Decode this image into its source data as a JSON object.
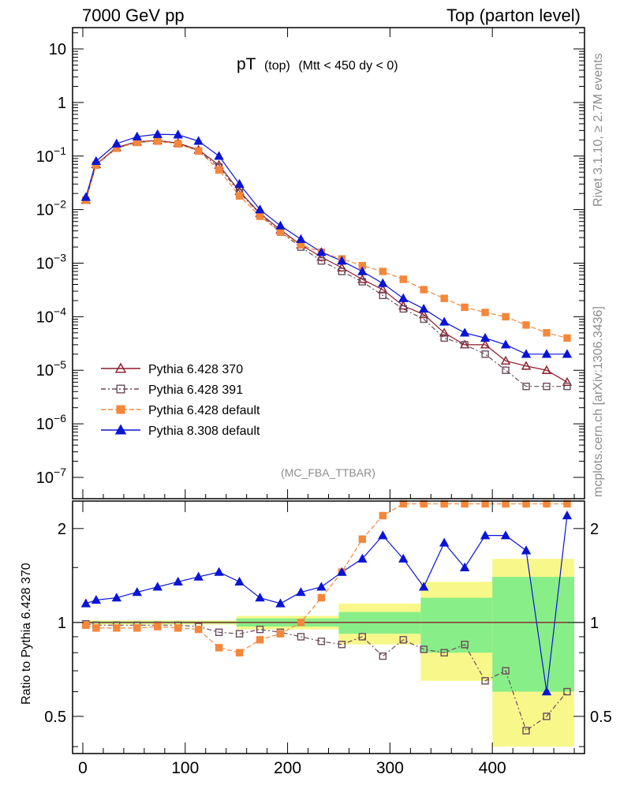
{
  "header": {
    "left_text": "7000 GeV pp",
    "right_text": "Top (parton level)"
  },
  "plot_title": {
    "main": "pT",
    "sub": "(top)",
    "cut": "(Mtt < 450 dy < 0)"
  },
  "analysis_tag": "(MC_FBA_TTBAR)",
  "side_text": {
    "rivet": "Rivet 3.1.10, ≥ 2.7M events",
    "site": "mcplots.cern.ch [arXiv:1306.3436]"
  },
  "ratio_ylabel": "Ratio to Pythia 6.428 370",
  "colors": {
    "p370": "#8b1a2a",
    "p391": "#6b4a5a",
    "p6def": "#f5873a",
    "p8def": "#0a14d6",
    "band_inner": "#88ee88",
    "band_outer": "#f8f88a"
  },
  "chart_data": [
    {
      "type": "line",
      "title": "pT (top) (Mtt < 450 dy < 0)",
      "y_scale": "log",
      "xlim": [
        -10,
        490
      ],
      "ylim": [
        4e-08,
        25
      ],
      "x_ticks": [
        0,
        100,
        200,
        300,
        400
      ],
      "y_ticks": [
        "10^{-7}",
        "10^{-6}",
        "10^{-5}",
        "10^{-4}",
        "10^{-3}",
        "10^{-2}",
        "10^{-1}",
        "1",
        "10"
      ],
      "legend_position": "bottom-left",
      "series": [
        {
          "name": "Pythia 6.428 370",
          "marker": "open-triangle",
          "x": [
            3,
            13,
            33,
            53,
            73,
            93,
            113,
            133,
            153,
            173,
            193,
            213,
            233,
            253,
            273,
            293,
            313,
            333,
            353,
            373,
            393,
            413,
            433,
            453,
            473
          ],
          "y": [
            0.015,
            0.07,
            0.145,
            0.185,
            0.195,
            0.175,
            0.13,
            0.068,
            0.022,
            0.0085,
            0.0042,
            0.0022,
            0.0013,
            0.00082,
            0.0005,
            0.00032,
            0.00016,
            0.00011,
            5e-05,
            3e-05,
            3e-05,
            1.5e-05,
            1.2e-05,
            1e-05,
            6e-06
          ]
        },
        {
          "name": "Pythia 6.428 391",
          "marker": "open-square",
          "x": [
            3,
            13,
            33,
            53,
            73,
            93,
            113,
            133,
            153,
            173,
            193,
            213,
            233,
            253,
            273,
            293,
            313,
            333,
            353,
            373,
            393,
            413,
            433,
            453,
            473
          ],
          "y": [
            0.015,
            0.068,
            0.14,
            0.18,
            0.19,
            0.17,
            0.125,
            0.062,
            0.021,
            0.0082,
            0.0038,
            0.002,
            0.0011,
            0.0007,
            0.00045,
            0.00025,
            0.00014,
            9e-05,
            4e-05,
            3e-05,
            2e-05,
            1e-05,
            5e-06,
            5e-06,
            5e-06
          ]
        },
        {
          "name": "Pythia 6.428 default",
          "marker": "filled-square",
          "x": [
            3,
            13,
            33,
            53,
            73,
            93,
            113,
            133,
            153,
            173,
            193,
            213,
            233,
            253,
            273,
            293,
            313,
            333,
            353,
            373,
            393,
            413,
            433,
            453,
            473
          ],
          "y": [
            0.015,
            0.068,
            0.14,
            0.18,
            0.19,
            0.17,
            0.125,
            0.055,
            0.018,
            0.0075,
            0.0038,
            0.0022,
            0.0016,
            0.0012,
            0.0009,
            0.0007,
            0.0005,
            0.00032,
            0.00022,
            0.00015,
            0.00012,
            0.0001,
            7e-05,
            5e-05,
            4e-05
          ]
        },
        {
          "name": "Pythia 8.308 default",
          "marker": "filled-triangle",
          "x": [
            3,
            13,
            33,
            53,
            73,
            93,
            113,
            133,
            153,
            173,
            193,
            213,
            233,
            253,
            273,
            293,
            313,
            333,
            353,
            373,
            393,
            413,
            433,
            453,
            473
          ],
          "y": [
            0.017,
            0.08,
            0.17,
            0.23,
            0.255,
            0.25,
            0.19,
            0.1,
            0.03,
            0.01,
            0.005,
            0.0028,
            0.0016,
            0.0011,
            0.0007,
            0.00042,
            0.00022,
            0.00014,
            8e-05,
            5e-05,
            4e-05,
            3e-05,
            2e-05,
            2e-05,
            2e-05
          ]
        }
      ]
    },
    {
      "type": "line",
      "ylabel": "Ratio to Pythia 6.428 370",
      "y_scale": "log",
      "xlim": [
        -10,
        490
      ],
      "ylim": [
        0.38,
        2.45
      ],
      "x_ticks": [
        0,
        100,
        200,
        300,
        400
      ],
      "y_ticks": [
        0.5,
        1,
        2
      ],
      "series": [
        {
          "name": "Pythia 6.428 391",
          "x": [
            3,
            13,
            33,
            53,
            73,
            93,
            113,
            133,
            153,
            173,
            193,
            213,
            233,
            253,
            273,
            293,
            313,
            333,
            353,
            373,
            393,
            413,
            433,
            453,
            473
          ],
          "y": [
            0.99,
            0.98,
            0.98,
            0.98,
            0.98,
            0.98,
            0.97,
            0.93,
            0.92,
            0.95,
            0.93,
            0.9,
            0.87,
            0.85,
            0.9,
            0.78,
            0.88,
            0.82,
            0.8,
            0.85,
            0.65,
            0.7,
            0.45,
            0.5,
            0.6
          ]
        },
        {
          "name": "Pythia 6.428 default",
          "x": [
            3,
            13,
            33,
            53,
            73,
            93,
            113,
            133,
            153,
            173,
            193,
            213,
            233,
            253,
            273,
            293,
            313,
            333,
            353,
            373,
            393,
            413,
            433,
            453,
            473
          ],
          "y": [
            0.98,
            0.96,
            0.96,
            0.96,
            0.97,
            0.96,
            0.95,
            0.83,
            0.8,
            0.88,
            0.92,
            1.0,
            1.2,
            1.45,
            1.85,
            2.2,
            2.4,
            2.4,
            2.4,
            2.4,
            2.4,
            2.4,
            2.4,
            2.4,
            2.4
          ]
        },
        {
          "name": "Pythia 8.308 default",
          "x": [
            3,
            13,
            33,
            53,
            73,
            93,
            113,
            133,
            153,
            173,
            193,
            213,
            233,
            253,
            273,
            293,
            313,
            333,
            353,
            373,
            393,
            413,
            433,
            453,
            473
          ],
          "y": [
            1.15,
            1.18,
            1.2,
            1.25,
            1.3,
            1.35,
            1.4,
            1.45,
            1.35,
            1.2,
            1.15,
            1.25,
            1.3,
            1.45,
            1.6,
            1.9,
            1.6,
            1.3,
            1.8,
            1.5,
            1.9,
            1.9,
            1.7,
            0.6,
            2.2
          ]
        }
      ]
    }
  ]
}
